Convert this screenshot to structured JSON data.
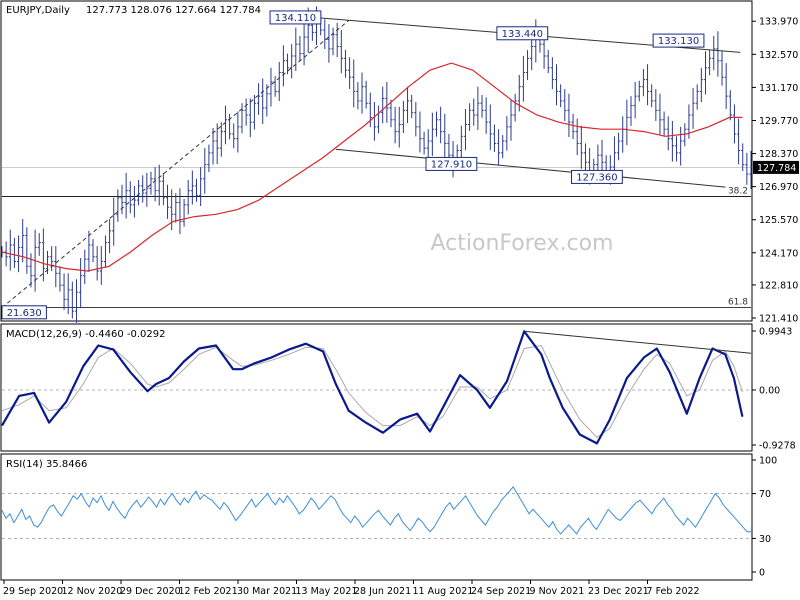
{
  "chart_data": {
    "type": "line",
    "header": {
      "symbol": "EURJPY,Daily",
      "ohlc": "127.773 128.076 127.664 127.784"
    },
    "watermark": "ActionForex.com",
    "colors": {
      "background": "#ffffff",
      "price_bar": "#2b3a8f",
      "ma": "#d9262c",
      "channel": "#333333",
      "macd": "#0a1a8c",
      "signal": "#aaaaaa",
      "rsi": "#3a8fd8",
      "grid_dash": "#999999"
    },
    "x_ticks": [
      "29 Sep 2020",
      "12 Nov 2020",
      "29 Dec 2020",
      "12 Feb 2021",
      "30 Mar 2021",
      "13 May 2021",
      "28 Jun 2021",
      "11 Aug 2021",
      "24 Sep 2021",
      "9 Nov 2021",
      "23 Dec 2021",
      "7 Feb 2022"
    ],
    "price_panel": {
      "ylim": [
        121.41,
        134.7
      ],
      "y_ticks": [
        "133.970",
        "132.570",
        "131.170",
        "129.770",
        "128.370",
        "126.970",
        "125.570",
        "124.170",
        "122.810",
        "121.410"
      ],
      "current_price": "127.784",
      "x_range": [
        0,
        350
      ],
      "closes": [
        124.2,
        124.0,
        124.5,
        123.8,
        124.4,
        124.9,
        123.6,
        123.2,
        124.4,
        124.6,
        123.5,
        124.0,
        123.8,
        123.3,
        122.8,
        122.2,
        122.6,
        121.7,
        122.5,
        123.2,
        123.9,
        124.5,
        124.0,
        123.4,
        123.8,
        124.6,
        125.1,
        125.8,
        126.5,
        126.3,
        126.8,
        126.2,
        126.4,
        127.0,
        126.7,
        126.9,
        127.3,
        126.8,
        127.2,
        126.5,
        126.1,
        125.8,
        126.3,
        125.5,
        126.2,
        126.8,
        127.0,
        126.6,
        127.3,
        127.9,
        128.4,
        128.9,
        128.6,
        129.3,
        129.8,
        129.2,
        129.0,
        129.5,
        130.2,
        130.0,
        129.7,
        130.5,
        130.8,
        130.3,
        130.9,
        131.4,
        131.0,
        131.8,
        132.3,
        132.0,
        132.5,
        133.0,
        132.6,
        133.3,
        133.8,
        133.5,
        134.0,
        133.6,
        133.2,
        132.8,
        133.4,
        132.9,
        132.4,
        131.9,
        131.6,
        131.0,
        130.6,
        131.2,
        130.5,
        129.9,
        129.5,
        130.1,
        130.7,
        130.3,
        129.8,
        129.3,
        129.6,
        130.2,
        130.6,
        130.1,
        129.5,
        129.0,
        128.6,
        128.9,
        129.4,
        129.8,
        129.3,
        128.8,
        128.3,
        127.9,
        128.5,
        129.1,
        129.6,
        130.2,
        130.0,
        130.5,
        130.2,
        129.7,
        129.2,
        128.8,
        128.4,
        128.9,
        129.5,
        130.0,
        130.6,
        131.2,
        131.8,
        132.4,
        132.9,
        133.3,
        133.0,
        132.5,
        132.0,
        131.5,
        131.0,
        130.6,
        130.2,
        129.7,
        129.3,
        128.8,
        128.4,
        128.0,
        127.6,
        127.9,
        128.3,
        128.0,
        127.5,
        127.8,
        128.4,
        128.9,
        129.4,
        129.9,
        130.4,
        130.8,
        131.2,
        131.5,
        131.0,
        130.6,
        130.2,
        129.8,
        129.4,
        129.0,
        128.7,
        128.4,
        128.9,
        129.4,
        130.0,
        130.5,
        131.0,
        131.5,
        132.0,
        132.4,
        132.8,
        132.3,
        131.6,
        130.8,
        130.0,
        129.2,
        128.5,
        127.9,
        127.5,
        127.784
      ],
      "ma": {
        "x": [
          0,
          10,
          20,
          30,
          40,
          50,
          60,
          70,
          80,
          90,
          100,
          110,
          120,
          130,
          140,
          150,
          160,
          170,
          180,
          190,
          200,
          210,
          220,
          230,
          240,
          250,
          260,
          270,
          280,
          290,
          300,
          310,
          320,
          330,
          340,
          346
        ],
        "y": [
          124.2,
          124.0,
          123.7,
          123.5,
          123.4,
          123.6,
          124.2,
          124.9,
          125.5,
          125.7,
          125.8,
          126.0,
          126.4,
          127.0,
          127.6,
          128.2,
          128.9,
          129.6,
          130.4,
          131.2,
          131.9,
          132.2,
          131.9,
          131.2,
          130.5,
          130.0,
          129.7,
          129.5,
          129.4,
          129.4,
          129.3,
          129.1,
          129.2,
          129.5,
          129.9,
          129.9
        ]
      },
      "channel_upper": [
        [
          149,
          134.11
        ],
        [
          345,
          132.65
        ]
      ],
      "channel_lower": [
        [
          156,
          128.55
        ],
        [
          338,
          126.95
        ]
      ],
      "uptrend": [
        [
          0,
          121.85
        ],
        [
          162,
          134.0
        ]
      ],
      "fib_levels": [
        {
          "value": 126.55,
          "label": "38.2"
        },
        {
          "value": 121.85,
          "label": "61.8"
        }
      ],
      "annotations": [
        {
          "x": 149,
          "y": 134.11,
          "text": "134.110",
          "pos": "left"
        },
        {
          "x": 255,
          "y": 133.44,
          "text": "133.440",
          "pos": "left"
        },
        {
          "x": 328,
          "y": 133.13,
          "text": "133.130",
          "pos": "left"
        },
        {
          "x": 210,
          "y": 127.91,
          "text": "127.910",
          "pos": "center"
        },
        {
          "x": 278,
          "y": 127.36,
          "text": "127.360",
          "pos": "center"
        },
        {
          "x": 0,
          "y": 121.63,
          "text": "21.630",
          "pos": "right"
        }
      ]
    },
    "macd_panel": {
      "label": "MACD(12,26,9) -0.4460 -0.0292",
      "ylim": [
        -0.9278,
        0.9943
      ],
      "y_ticks": [
        "0.9943",
        "0.00",
        "-0.9278"
      ],
      "macd": {
        "x": [
          0,
          8,
          15,
          22,
          30,
          38,
          45,
          52,
          60,
          68,
          72,
          78,
          85,
          92,
          100,
          108,
          112,
          118,
          126,
          134,
          142,
          150,
          156,
          162,
          170,
          178,
          186,
          194,
          200,
          206,
          214,
          222,
          228,
          236,
          244,
          252,
          256,
          262,
          270,
          278,
          284,
          292,
          300,
          306,
          312,
          320,
          326,
          332,
          338,
          342,
          346
        ],
        "y": [
          -0.6,
          -0.1,
          -0.05,
          -0.55,
          -0.2,
          0.4,
          0.75,
          0.68,
          0.3,
          -0.02,
          0.1,
          0.2,
          0.48,
          0.7,
          0.75,
          0.35,
          0.35,
          0.45,
          0.55,
          0.68,
          0.78,
          0.65,
          0.1,
          -0.35,
          -0.55,
          -0.72,
          -0.5,
          -0.4,
          -0.7,
          -0.3,
          0.25,
          0.0,
          -0.3,
          0.15,
          0.99,
          0.6,
          0.2,
          -0.3,
          -0.75,
          -0.9,
          -0.5,
          0.2,
          0.55,
          0.7,
          0.3,
          -0.4,
          0.2,
          0.7,
          0.6,
          0.2,
          -0.45
        ]
      },
      "signal": {
        "x": [
          0,
          8,
          15,
          22,
          30,
          38,
          45,
          52,
          60,
          68,
          72,
          78,
          85,
          92,
          100,
          108,
          112,
          118,
          126,
          134,
          142,
          150,
          156,
          162,
          170,
          178,
          186,
          194,
          200,
          206,
          214,
          222,
          228,
          236,
          244,
          252,
          256,
          262,
          270,
          278,
          284,
          292,
          300,
          306,
          312,
          320,
          326,
          332,
          338,
          342,
          346
        ],
        "y": [
          -0.35,
          -0.25,
          -0.1,
          -0.35,
          -0.3,
          0.1,
          0.55,
          0.7,
          0.45,
          0.1,
          0.05,
          0.12,
          0.35,
          0.6,
          0.72,
          0.5,
          0.4,
          0.42,
          0.5,
          0.6,
          0.72,
          0.7,
          0.35,
          -0.05,
          -0.38,
          -0.6,
          -0.6,
          -0.45,
          -0.6,
          -0.45,
          0.05,
          0.05,
          -0.15,
          0.0,
          0.7,
          0.75,
          0.45,
          0.0,
          -0.5,
          -0.8,
          -0.65,
          -0.1,
          0.35,
          0.6,
          0.45,
          -0.1,
          0.0,
          0.5,
          0.65,
          0.4,
          -0.03
        ]
      },
      "trendline": [
        [
          244,
          0.99
        ],
        [
          350,
          0.62
        ]
      ]
    },
    "rsi_panel": {
      "label": "RSI(14) 35.8466",
      "ylim": [
        0,
        100
      ],
      "y_ticks": [
        "100",
        "70",
        "30",
        "0"
      ],
      "levels": [
        70,
        30
      ],
      "rsi": [
        55,
        48,
        52,
        44,
        50,
        56,
        47,
        50,
        42,
        40,
        45,
        52,
        58,
        60,
        54,
        50,
        56,
        62,
        68,
        65,
        70,
        63,
        58,
        66,
        62,
        68,
        60,
        55,
        63,
        57,
        52,
        48,
        55,
        60,
        64,
        58,
        62,
        67,
        63,
        58,
        65,
        60,
        66,
        70,
        64,
        60,
        66,
        62,
        68,
        72,
        65,
        69,
        66,
        64,
        60,
        56,
        62,
        58,
        52,
        46,
        50,
        55,
        60,
        65,
        58,
        62,
        66,
        70,
        64,
        60,
        66,
        62,
        68,
        63,
        58,
        52,
        55,
        60,
        66,
        62,
        56,
        60,
        64,
        68,
        65,
        58,
        52,
        48,
        44,
        50,
        46,
        40,
        44,
        48,
        52,
        55,
        50,
        46,
        42,
        48,
        52,
        45,
        41,
        37,
        42,
        48,
        45,
        40,
        36,
        40,
        46,
        52,
        58,
        62,
        56,
        60,
        64,
        68,
        62,
        56,
        50,
        46,
        42,
        48,
        54,
        58,
        64,
        68,
        72,
        76,
        70,
        64,
        58,
        52,
        56,
        52,
        48,
        44,
        40,
        45,
        38,
        34,
        38,
        42,
        38,
        34,
        40,
        44,
        48,
        42,
        38,
        44,
        50,
        56,
        52,
        48,
        46,
        50,
        54,
        58,
        62,
        64,
        60,
        56,
        52,
        58,
        62,
        66,
        60,
        56,
        50,
        46,
        42,
        48,
        44,
        40,
        46,
        52,
        58,
        64,
        70,
        66,
        60,
        56,
        52,
        48,
        44,
        40,
        36,
        35.85
      ]
    }
  }
}
